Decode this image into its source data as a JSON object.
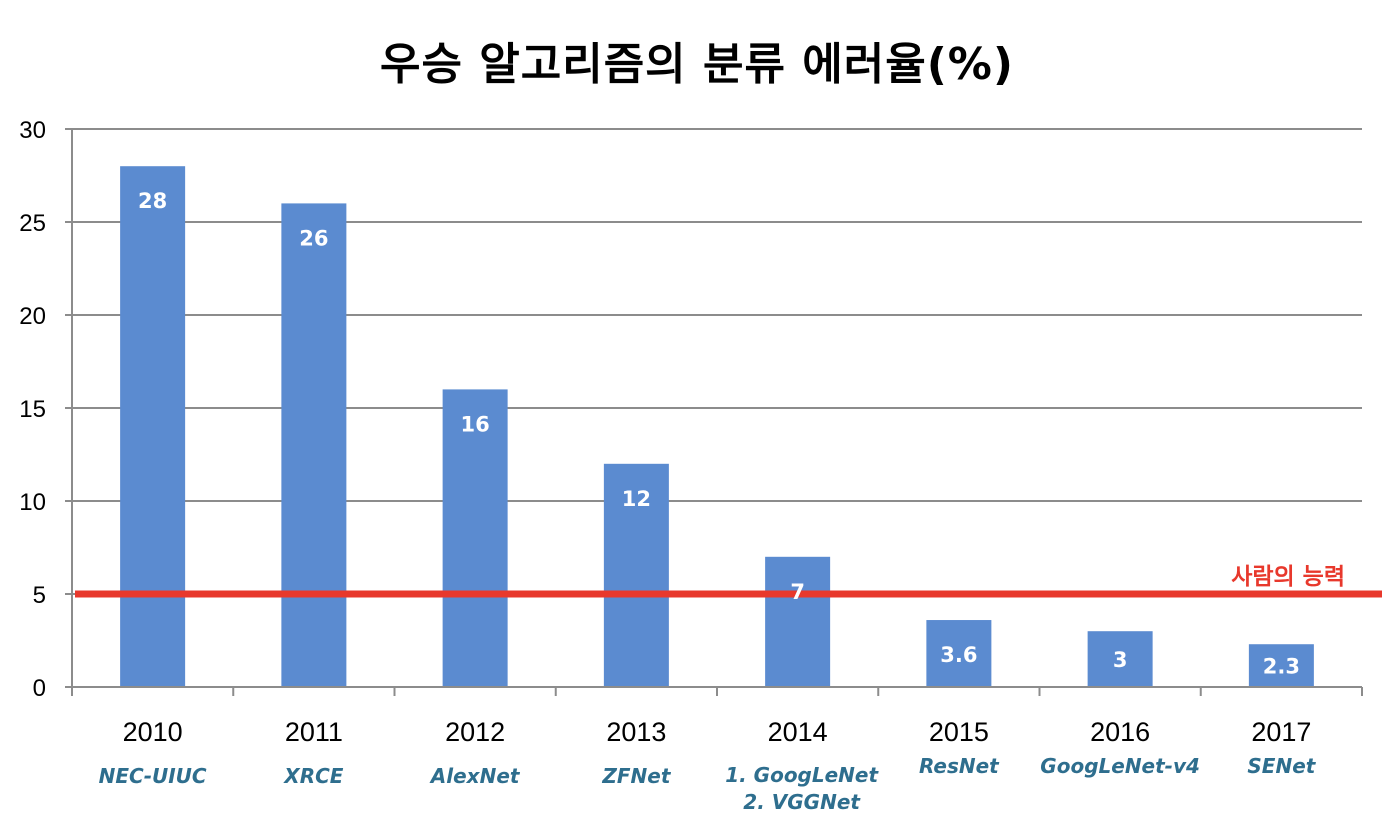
{
  "chart_data": {
    "type": "bar",
    "title": "우승 알고리즘의 분류 에러율(%)",
    "categories": [
      "2010",
      "2011",
      "2012",
      "2013",
      "2014",
      "2015",
      "2016",
      "2017"
    ],
    "model_names": [
      [
        "NEC-UIUC"
      ],
      [
        "XRCE"
      ],
      [
        "AlexNet"
      ],
      [
        "ZFNet"
      ],
      [
        "1. GoogLeNet",
        "2. VGGNet"
      ],
      [
        "ResNet"
      ],
      [
        "GoogLeNet-v4"
      ],
      [
        "SENet"
      ]
    ],
    "values": [
      28,
      26,
      16,
      12,
      7,
      3.6,
      3,
      2.3
    ],
    "data_labels": [
      "28",
      "26",
      "16",
      "12",
      "7",
      "3.6",
      "3",
      "2.3"
    ],
    "ylim": [
      0,
      30
    ],
    "yticks": [
      0,
      5,
      10,
      15,
      20,
      25,
      30
    ],
    "xlabel": "",
    "ylabel": "",
    "grid": true,
    "reference_line": {
      "value": 5,
      "label": "사람의 능력",
      "color": "#e8382c"
    },
    "colors": {
      "bar": "#5b8bd0",
      "gridline": "#8c8c8c",
      "model_label": "#2e6e8e"
    }
  }
}
